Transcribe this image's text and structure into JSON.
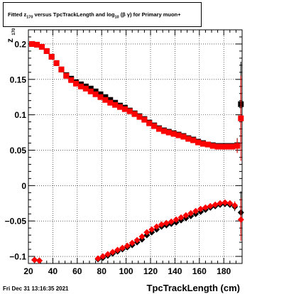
{
  "title": {
    "prefix": "Fitted  z",
    "sub1": "170",
    "middle": "  versus TpcTrackLength and log",
    "sub2": "10",
    "suffix": "(β  γ) for Primary muon+"
  },
  "footer": {
    "datetime": "Fri Dec 31 13:16:35 2021"
  },
  "chart_data": {
    "type": "scatter",
    "xlabel": "TpcTrackLength (cm)",
    "ylabel": "z",
    "ylabel_sub": "170",
    "xlim": [
      20,
      195
    ],
    "ylim": [
      -0.11,
      0.22
    ],
    "grid": true,
    "x_ticks": [
      20,
      40,
      60,
      80,
      100,
      120,
      140,
      160,
      180
    ],
    "x_tick_labels": [
      "20",
      "40",
      "60",
      "80",
      "100",
      "120",
      "140",
      "160",
      "180"
    ],
    "y_ticks": [
      0.2,
      0.15,
      0.1,
      0.05,
      0,
      -0.05,
      -0.1
    ],
    "y_tick_labels": [
      "0.2",
      "0.15",
      "0.1",
      "0.05",
      "0",
      "−0.05",
      "−0.1"
    ],
    "colors": {
      "primary": "#ff0000",
      "secondary": "#000000"
    },
    "series": [
      {
        "marker": "square",
        "color": "#000000",
        "x": [
          23,
          27,
          31,
          35,
          39,
          43,
          47,
          51,
          55,
          59,
          63,
          67,
          71,
          75,
          79,
          83,
          87,
          91,
          95,
          99,
          103,
          107,
          111,
          115,
          119,
          123,
          127,
          131,
          135,
          139,
          143,
          147,
          151,
          155,
          159,
          163,
          167,
          171,
          175,
          179,
          183,
          187,
          191,
          194
        ],
        "y": [
          0.2,
          0.199,
          0.196,
          0.19,
          0.182,
          0.173,
          0.164,
          0.156,
          0.151,
          0.146,
          0.143,
          0.14,
          0.137,
          0.133,
          0.129,
          0.125,
          0.121,
          0.117,
          0.113,
          0.11,
          0.106,
          0.102,
          0.098,
          0.094,
          0.089,
          0.085,
          0.081,
          0.078,
          0.076,
          0.074,
          0.072,
          0.07,
          0.067,
          0.065,
          0.062,
          0.06,
          0.058,
          0.057,
          0.056,
          0.056,
          0.056,
          0.056,
          0.057,
          0.115
        ],
        "yerr": [
          0.001,
          0.001,
          0.001,
          0.001,
          0.001,
          0.001,
          0.001,
          0.001,
          0.001,
          0.001,
          0.001,
          0.001,
          0.001,
          0.001,
          0.001,
          0.001,
          0.001,
          0.001,
          0.001,
          0.001,
          0.001,
          0.001,
          0.001,
          0.001,
          0.001,
          0.001,
          0.001,
          0.001,
          0.001,
          0.001,
          0.001,
          0.001,
          0.001,
          0.001,
          0.001,
          0.001,
          0.001,
          0.001,
          0.001,
          0.001,
          0.002,
          0.003,
          0.01,
          0.06
        ]
      },
      {
        "marker": "square",
        "color": "#ff0000",
        "x": [
          23,
          27,
          31,
          35,
          39,
          43,
          47,
          51,
          55,
          59,
          63,
          67,
          71,
          75,
          79,
          83,
          87,
          91,
          95,
          99,
          103,
          107,
          111,
          115,
          119,
          123,
          127,
          131,
          135,
          139,
          143,
          147,
          151,
          155,
          159,
          163,
          167,
          171,
          175,
          179,
          183,
          187,
          191,
          194
        ],
        "y": [
          0.2,
          0.199,
          0.196,
          0.19,
          0.182,
          0.173,
          0.164,
          0.155,
          0.149,
          0.144,
          0.14,
          0.137,
          0.133,
          0.129,
          0.125,
          0.121,
          0.117,
          0.114,
          0.111,
          0.108,
          0.105,
          0.101,
          0.097,
          0.093,
          0.088,
          0.084,
          0.08,
          0.077,
          0.075,
          0.073,
          0.071,
          0.069,
          0.066,
          0.064,
          0.061,
          0.059,
          0.058,
          0.056,
          0.055,
          0.055,
          0.055,
          0.055,
          0.056,
          0.095
        ],
        "yerr": [
          0.001,
          0.001,
          0.001,
          0.001,
          0.001,
          0.001,
          0.001,
          0.001,
          0.001,
          0.001,
          0.001,
          0.001,
          0.001,
          0.001,
          0.001,
          0.001,
          0.001,
          0.001,
          0.001,
          0.001,
          0.001,
          0.001,
          0.001,
          0.001,
          0.001,
          0.001,
          0.001,
          0.001,
          0.001,
          0.001,
          0.001,
          0.001,
          0.001,
          0.001,
          0.001,
          0.001,
          0.001,
          0.001,
          0.001,
          0.001,
          0.002,
          0.003,
          0.01,
          0.06
        ]
      },
      {
        "marker": "diamond",
        "color": "#000000",
        "x": [
          25,
          29,
          77,
          81,
          85,
          89,
          93,
          97,
          101,
          105,
          109,
          113,
          117,
          121,
          125,
          129,
          133,
          137,
          141,
          145,
          149,
          153,
          157,
          161,
          165,
          169,
          173,
          177,
          181,
          185,
          189,
          194
        ],
        "y": [
          -0.105,
          -0.106,
          -0.104,
          -0.102,
          -0.099,
          -0.096,
          -0.093,
          -0.09,
          -0.087,
          -0.084,
          -0.08,
          -0.076,
          -0.07,
          -0.066,
          -0.062,
          -0.058,
          -0.056,
          -0.054,
          -0.052,
          -0.049,
          -0.046,
          -0.043,
          -0.04,
          -0.037,
          -0.034,
          -0.031,
          -0.029,
          -0.027,
          -0.026,
          -0.027,
          -0.03,
          -0.038
        ],
        "yerr": [
          0,
          0,
          0.002,
          0.001,
          0.001,
          0.001,
          0.001,
          0.001,
          0.001,
          0.001,
          0.001,
          0.001,
          0.001,
          0.001,
          0.001,
          0.001,
          0.001,
          0.001,
          0.001,
          0.001,
          0.001,
          0.001,
          0.001,
          0.001,
          0.001,
          0.001,
          0.001,
          0.001,
          0.002,
          0.003,
          0.006,
          0.03
        ]
      },
      {
        "marker": "diamond",
        "color": "#ff0000",
        "x": [
          25,
          29,
          77,
          81,
          85,
          89,
          93,
          97,
          101,
          105,
          109,
          113,
          117,
          121,
          125,
          129,
          133,
          137,
          141,
          145,
          149,
          153,
          157,
          161,
          165,
          169,
          173,
          177,
          181,
          185,
          189,
          194
        ],
        "y": [
          -0.105,
          -0.106,
          -0.103,
          -0.1,
          -0.097,
          -0.094,
          -0.091,
          -0.088,
          -0.085,
          -0.081,
          -0.077,
          -0.072,
          -0.066,
          -0.062,
          -0.058,
          -0.055,
          -0.053,
          -0.051,
          -0.048,
          -0.045,
          -0.042,
          -0.039,
          -0.036,
          -0.033,
          -0.031,
          -0.029,
          -0.027,
          -0.025,
          -0.024,
          -0.025,
          -0.028,
          -0.048
        ],
        "yerr": [
          0,
          0,
          0.002,
          0.001,
          0.001,
          0.001,
          0.001,
          0.001,
          0.001,
          0.001,
          0.001,
          0.001,
          0.001,
          0.001,
          0.001,
          0.001,
          0.001,
          0.001,
          0.001,
          0.001,
          0.001,
          0.001,
          0.001,
          0.001,
          0.001,
          0.001,
          0.001,
          0.001,
          0.002,
          0.003,
          0.006,
          0.03
        ]
      }
    ]
  }
}
